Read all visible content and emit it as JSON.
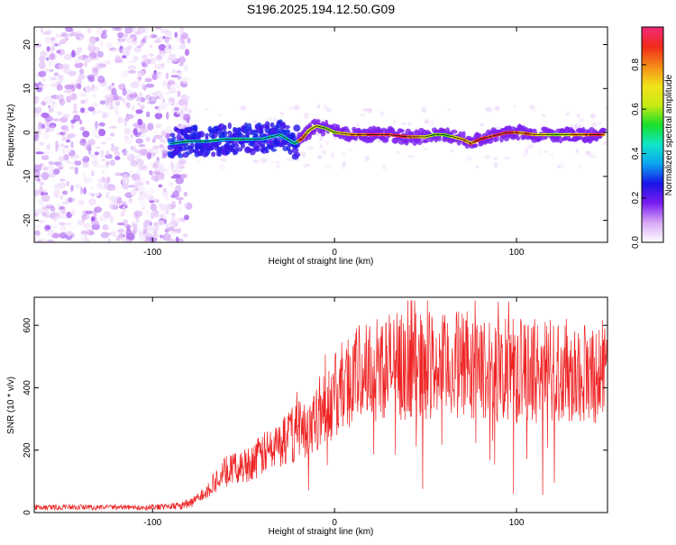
{
  "title": "S196.2025.194.12.50.G09",
  "chart_data": [
    {
      "type": "heatmap",
      "title": "S196.2025.194.12.50.G09",
      "xlabel": "Height of straight line (km)",
      "ylabel": "Frequency (Hz)",
      "xlim": [
        -165,
        150
      ],
      "ylim": [
        -25,
        24
      ],
      "xticks": [
        -100,
        0,
        100
      ],
      "yticks": [
        -20,
        -10,
        0,
        10,
        20
      ],
      "colorbar": {
        "label": "Normalized spectral amplitude",
        "range": [
          0.0,
          0.97
        ],
        "ticks": [
          0.0,
          0.2,
          0.4,
          0.6,
          0.8
        ],
        "tick_labels": [
          "0.0",
          "0.2",
          "0.4",
          "0.6",
          "0.8"
        ],
        "colormap": [
          "#ffffff",
          "#d7a8f5",
          "#7a1cf0",
          "#1a14e6",
          "#0aa3f0",
          "#10e6c8",
          "#18e02a",
          "#c8ea12",
          "#f2e21a",
          "#f58a18",
          "#f02a1a",
          "#f02a78"
        ]
      },
      "ridge": {
        "description_free": true,
        "x": [
          -90,
          -80,
          -70,
          -60,
          -50,
          -40,
          -30,
          -22,
          -18,
          -14,
          -10,
          -5,
          0,
          10,
          20,
          30,
          40,
          50,
          55,
          60,
          65,
          70,
          75,
          80,
          85,
          90,
          95,
          100,
          110,
          120,
          130,
          140,
          148
        ],
        "y": [
          -2.5,
          -2.0,
          -2.0,
          -1.5,
          -1.5,
          -1.5,
          -0.5,
          -2.5,
          -1.5,
          0.5,
          1.5,
          1.0,
          0.0,
          -0.5,
          -0.5,
          -0.5,
          -1.0,
          -1.0,
          -0.5,
          -0.5,
          -1.0,
          -1.5,
          -2.5,
          -1.5,
          -1.0,
          -0.5,
          0.0,
          0.0,
          -0.5,
          -0.5,
          -0.5,
          -0.5,
          -0.5
        ]
      },
      "noise_region_x": [
        -165,
        -85
      ]
    },
    {
      "type": "line",
      "xlabel": "Height of straight line (km)",
      "ylabel": "SNR (10 * v/v)",
      "xlim": [
        -165,
        150
      ],
      "ylim": [
        0,
        690
      ],
      "xticks": [
        -100,
        0,
        100
      ],
      "yticks": [
        0,
        200,
        400,
        600
      ],
      "color": "#ee2222",
      "envelope": {
        "x": [
          -165,
          -100,
          -85,
          -78,
          -72,
          -66,
          -60,
          -50,
          -40,
          -35,
          -30,
          -25,
          -20,
          -15,
          -10,
          -5,
          0,
          5,
          10,
          15,
          20,
          30,
          40,
          50,
          60,
          70,
          80,
          90,
          100,
          110,
          120,
          130,
          140,
          150
        ],
        "y": [
          20,
          20,
          25,
          40,
          70,
          110,
          150,
          170,
          210,
          230,
          250,
          280,
          300,
          320,
          360,
          390,
          420,
          470,
          500,
          510,
          530,
          540,
          530,
          540,
          530,
          545,
          520,
          520,
          520,
          520,
          520,
          520,
          515,
          520
        ]
      }
    }
  ]
}
